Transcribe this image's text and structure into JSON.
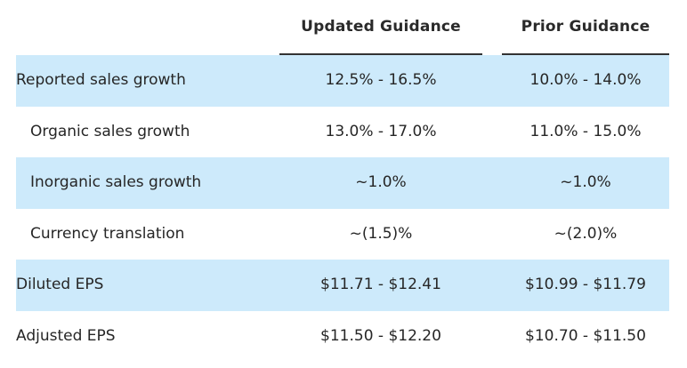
{
  "columns": {
    "updated": "Updated Guidance",
    "prior": "Prior Guidance"
  },
  "rows": [
    {
      "label": "Reported sales growth",
      "updated": "12.5% - 16.5%",
      "prior": "10.0% - 14.0%"
    },
    {
      "label": "Organic sales growth",
      "updated": "13.0% - 17.0%",
      "prior": "11.0% - 15.0%"
    },
    {
      "label": "Inorganic sales growth",
      "updated": "~1.0%",
      "prior": "~1.0%"
    },
    {
      "label": "Currency translation",
      "updated": "~(1.5)%",
      "prior": "~(2.0)%"
    },
    {
      "label": "Diluted EPS",
      "updated": "$11.71 - $12.41",
      "prior": "$10.99 - $11.79"
    },
    {
      "label": "Adjusted EPS",
      "updated": "$11.50 - $12.20",
      "prior": "$10.70 - $11.50"
    }
  ],
  "colors": {
    "row_shade": "#cdeafb",
    "rule": "#333333"
  }
}
